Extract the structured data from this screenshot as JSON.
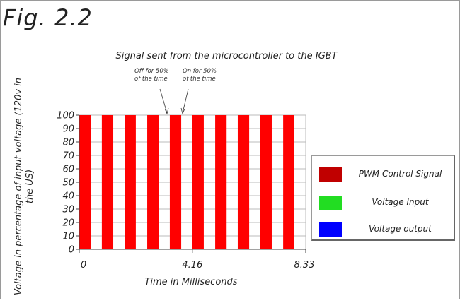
{
  "figure_label": "Fig. 2.2",
  "annotations": {
    "off": [
      "Off for 50%",
      "of the time"
    ],
    "on": [
      "On for 50%",
      "of the time"
    ]
  },
  "colors": {
    "pwm": "#ff0000",
    "legend_pwm": "#c00000",
    "voltage_input": "#22dd22",
    "voltage_output": "#0000ff",
    "grid": "#bbbbbb"
  },
  "chart_data": {
    "type": "bar",
    "title": "Signal sent from the microcontroller to the IGBT",
    "xlabel": "Time in Milliseconds",
    "ylabel": "Voltage in percentage of input voltage (120v in the US)",
    "xlim": [
      0,
      8.33
    ],
    "ylim": [
      0,
      100
    ],
    "x_ticks": [
      "0",
      "4.16",
      "8.33"
    ],
    "y_ticks": [
      0,
      10,
      20,
      30,
      40,
      50,
      60,
      70,
      80,
      90,
      100
    ],
    "grid": true,
    "legend_position": "right",
    "series": [
      {
        "name": "PWM Control Signal",
        "pulses": [
          {
            "start": 0.0,
            "end": 0.42,
            "value": 100
          },
          {
            "start": 0.83,
            "end": 1.25,
            "value": 100
          },
          {
            "start": 1.67,
            "end": 2.08,
            "value": 100
          },
          {
            "start": 2.5,
            "end": 2.92,
            "value": 100
          },
          {
            "start": 3.33,
            "end": 3.75,
            "value": 100
          },
          {
            "start": 4.16,
            "end": 4.58,
            "value": 100
          },
          {
            "start": 5.0,
            "end": 5.42,
            "value": 100
          },
          {
            "start": 5.83,
            "end": 6.25,
            "value": 100
          },
          {
            "start": 6.66,
            "end": 7.08,
            "value": 100
          },
          {
            "start": 7.5,
            "end": 7.91,
            "value": 100
          }
        ]
      },
      {
        "name": "Voltage Input",
        "pulses": []
      },
      {
        "name": "Voltage output",
        "pulses": []
      }
    ]
  }
}
